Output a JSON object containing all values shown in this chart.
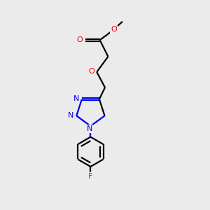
{
  "background_color": "#ebebeb",
  "bond_color": "#000000",
  "nitrogen_color": "#0000ee",
  "oxygen_color": "#ee0000",
  "fluorine_color": "#bb00bb",
  "line_width": 1.6,
  "figsize": [
    3.0,
    3.0
  ],
  "dpi": 100,
  "xlim": [
    2.5,
    7.5
  ],
  "ylim": [
    0.5,
    10.5
  ]
}
